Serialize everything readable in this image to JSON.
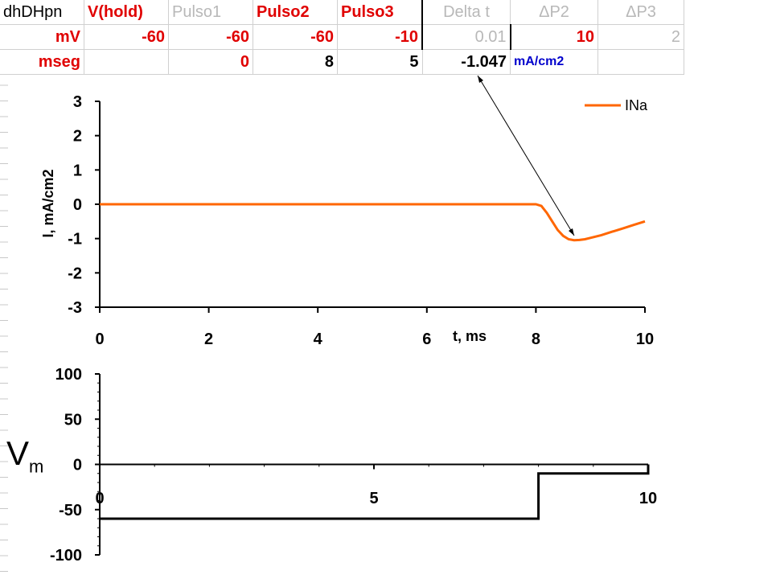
{
  "table": {
    "rows": [
      [
        "dhDHpn",
        "V(hold)",
        "Pulso1",
        "Pulso2",
        "Pulso3",
        "Delta t",
        "ΔP2",
        "ΔP3"
      ],
      [
        "mV",
        "-60",
        "-60",
        "-60",
        "-10",
        "0.01",
        "10",
        "2"
      ],
      [
        "mseg",
        "",
        "0",
        "8",
        "5",
        "-1.047",
        "mA/cm2",
        ""
      ]
    ]
  },
  "vm_label": {
    "main": "V",
    "sub": "m"
  },
  "colors": {
    "accent_red": "#e00000",
    "current_trace": "#ff6600",
    "unit_blue": "#0000cc"
  },
  "chart_data": [
    {
      "type": "line",
      "ylabel": "I, mA/cm2",
      "xlabel": "t, ms",
      "xlim": [
        0,
        10
      ],
      "ylim": [
        -3,
        3
      ],
      "x_ticks": [
        "0",
        "2",
        "4",
        "6",
        "8",
        "10"
      ],
      "y_ticks": [
        "3",
        "2",
        "1",
        "0",
        "-1",
        "-2",
        "-3"
      ],
      "legend": "top-right",
      "series": [
        {
          "name": "INa",
          "color": "#ff6600",
          "x": [
            0,
            8.0,
            8.1,
            8.2,
            8.3,
            8.4,
            8.5,
            8.6,
            8.7,
            8.8,
            8.9,
            9.0,
            9.2,
            9.4,
            9.6,
            9.8,
            10.0
          ],
          "y": [
            0,
            0,
            -0.05,
            -0.25,
            -0.5,
            -0.75,
            -0.92,
            -1.02,
            -1.047,
            -1.04,
            -1.02,
            -0.98,
            -0.9,
            -0.8,
            -0.7,
            -0.6,
            -0.5
          ]
        }
      ],
      "annotation": {
        "text": "-1.047",
        "x": 8.7,
        "y": -1.047
      }
    },
    {
      "type": "line",
      "xlim": [
        0,
        10
      ],
      "ylim": [
        -100,
        100
      ],
      "x_ticks": [
        "0",
        "5",
        "10"
      ],
      "y_ticks": [
        "100",
        "50",
        "0",
        "-50",
        "-100"
      ],
      "series": [
        {
          "color": "#000000",
          "x": [
            0,
            8,
            8,
            10,
            10
          ],
          "y": [
            -60,
            -60,
            -10,
            -10,
            0
          ]
        }
      ]
    }
  ]
}
